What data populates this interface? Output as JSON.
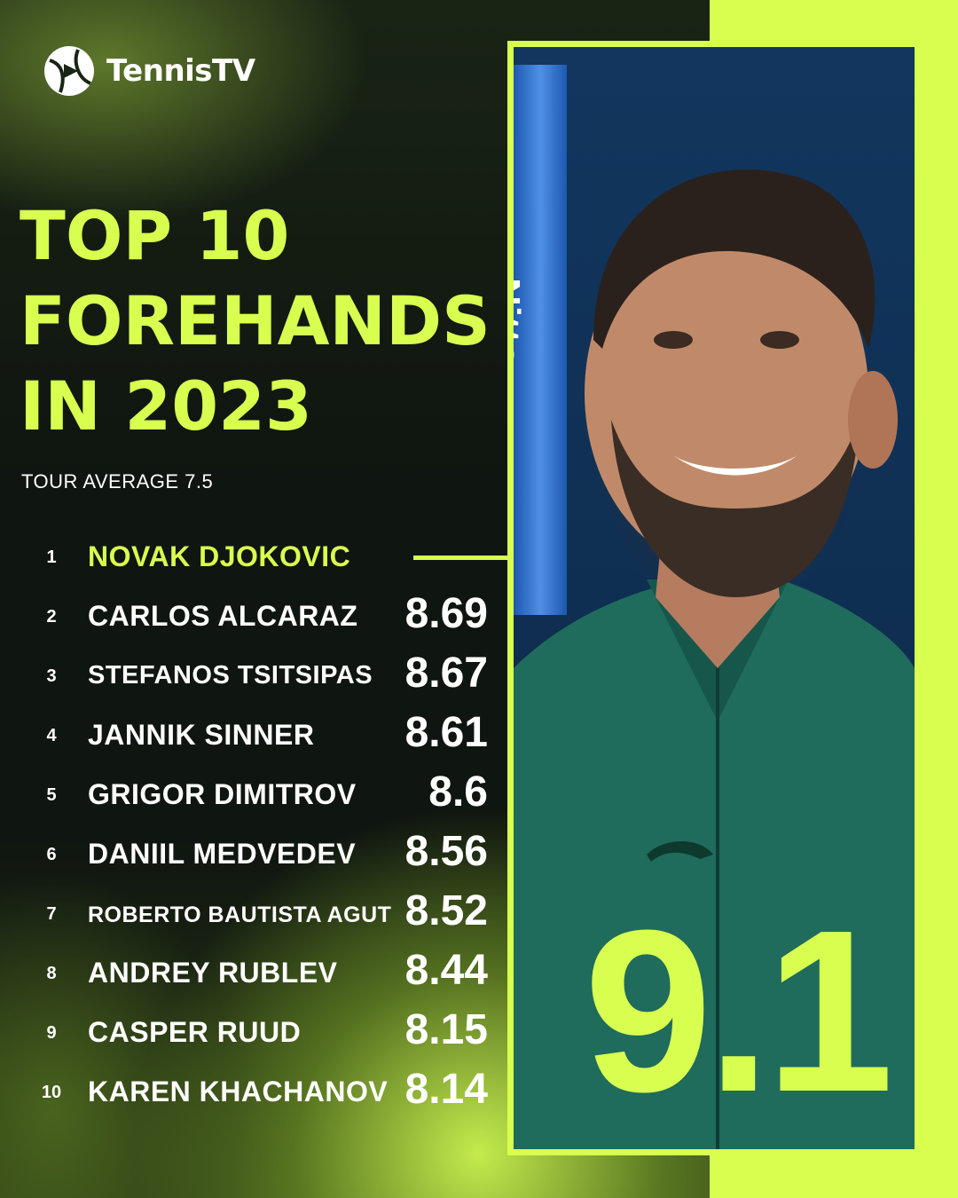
{
  "brand": {
    "name": "TennisTV",
    "logo_icon": "tennis-ball-icon",
    "accent_color": "#d8ff4f"
  },
  "title_lines": [
    "TOP 10",
    "FOREHANDS",
    "IN 2023"
  ],
  "subtitle": "TOUR AVERAGE 7.5",
  "featured": {
    "score": "9.1",
    "trophy_text": "Nitto"
  },
  "rankings": [
    {
      "rank": "1",
      "name": "NOVAK DJOKOVIC",
      "score": ""
    },
    {
      "rank": "2",
      "name": "CARLOS ALCARAZ",
      "score": "8.69"
    },
    {
      "rank": "3",
      "name": "STEFANOS TSITSIPAS",
      "score": "8.67"
    },
    {
      "rank": "4",
      "name": "JANNIK SINNER",
      "score": "8.61"
    },
    {
      "rank": "5",
      "name": "GRIGOR DIMITROV",
      "score": "8.6"
    },
    {
      "rank": "6",
      "name": "DANIIL MEDVEDEV",
      "score": "8.56"
    },
    {
      "rank": "7",
      "name": "ROBERTO BAUTISTA AGUT",
      "score": "8.52"
    },
    {
      "rank": "8",
      "name": "ANDREY RUBLEV",
      "score": "8.44"
    },
    {
      "rank": "9",
      "name": "CASPER RUUD",
      "score": "8.15"
    },
    {
      "rank": "10",
      "name": "KAREN KHACHANOV",
      "score": "8.14"
    }
  ]
}
